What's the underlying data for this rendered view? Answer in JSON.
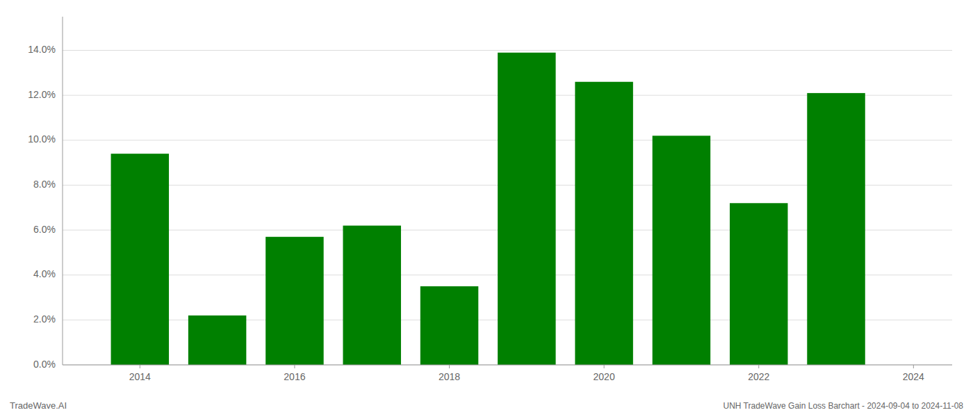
{
  "chart_data": {
    "type": "bar",
    "title": "UNH TradeWave Gain Loss Barchart - 2024-09-04 to 2024-11-08",
    "annotations": [
      "TradeWave.AI"
    ],
    "x": [
      2014,
      2015,
      2016,
      2017,
      2018,
      2019,
      2020,
      2021,
      2022,
      2023
    ],
    "values": [
      0.094,
      0.022,
      0.057,
      0.062,
      0.035,
      0.139,
      0.126,
      0.102,
      0.072,
      0.121
    ],
    "color": "#008000",
    "xlim": [
      2013.0,
      2024.5
    ],
    "xticks": [
      2014,
      2016,
      2018,
      2020,
      2022,
      2024
    ],
    "ylim": [
      0,
      0.155
    ],
    "yticks": [
      {
        "value": 0.0,
        "label": "0.0%"
      },
      {
        "value": 0.02,
        "label": "2.0%"
      },
      {
        "value": 0.04,
        "label": "4.0%"
      },
      {
        "value": 0.06,
        "label": "6.0%"
      },
      {
        "value": 0.08,
        "label": "8.0%"
      },
      {
        "value": 0.1,
        "label": "10.0%"
      },
      {
        "value": 0.12,
        "label": "12.0%"
      },
      {
        "value": 0.14,
        "label": "14.0%"
      }
    ],
    "grid": true
  }
}
